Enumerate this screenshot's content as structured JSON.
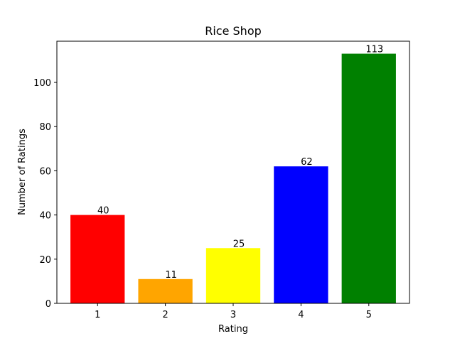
{
  "chart_data": {
    "type": "bar",
    "title": "Rice Shop",
    "xlabel": "Rating",
    "ylabel": "Number of Ratings",
    "categories": [
      "1",
      "2",
      "3",
      "4",
      "5"
    ],
    "values": [
      40,
      11,
      25,
      62,
      113
    ],
    "colors": [
      "#ff0000",
      "#ffa500",
      "#ffff00",
      "#0000ff",
      "#008000"
    ],
    "ylim": [
      0,
      118.65
    ],
    "yticks": [
      0,
      20,
      40,
      60,
      80,
      100
    ],
    "grid": false,
    "legend": "none"
  }
}
